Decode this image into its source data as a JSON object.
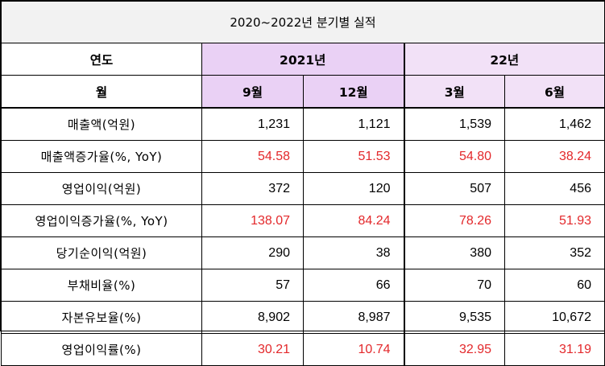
{
  "table": {
    "title": "2020~2022년 분기별 실적",
    "header": {
      "year_label": "연도",
      "year_2021": "2021년",
      "year_22": "22년",
      "month_label": "월",
      "months": [
        "9월",
        "12월",
        "3월",
        "6월"
      ]
    },
    "rows": [
      {
        "label": "매출액(억원)",
        "values": [
          "1,231",
          "1,121",
          "1,539",
          "1,462"
        ],
        "highlight": false
      },
      {
        "label": "매출액증가율(%, YoY)",
        "values": [
          "54.58",
          "51.53",
          "54.80",
          "38.24"
        ],
        "highlight": true
      },
      {
        "label": "영업이익(억원)",
        "values": [
          "372",
          "120",
          "507",
          "456"
        ],
        "highlight": false
      },
      {
        "label": "영업이익증가율(%, YoY)",
        "values": [
          "138.07",
          "84.24",
          "78.26",
          "51.93"
        ],
        "highlight": true
      },
      {
        "label": "당기순이익(억원)",
        "values": [
          "290",
          "38",
          "380",
          "352"
        ],
        "highlight": false
      },
      {
        "label": "부채비율(%)",
        "values": [
          "57",
          "66",
          "70",
          "60"
        ],
        "highlight": false
      },
      {
        "label": "자본유보율(%)",
        "values": [
          "8,902",
          "8,987",
          "9,535",
          "10,672"
        ],
        "highlight": false
      },
      {
        "label": "영업이익률(%)",
        "values": [
          "30.21",
          "10.74",
          "32.95",
          "31.19"
        ],
        "highlight": true
      }
    ],
    "colors": {
      "highlight_text": "#e3282b",
      "header_2021_bg": "#ead1f5",
      "header_22_bg": "#f2e1f7",
      "title_bg": "#f2f2f2"
    }
  }
}
